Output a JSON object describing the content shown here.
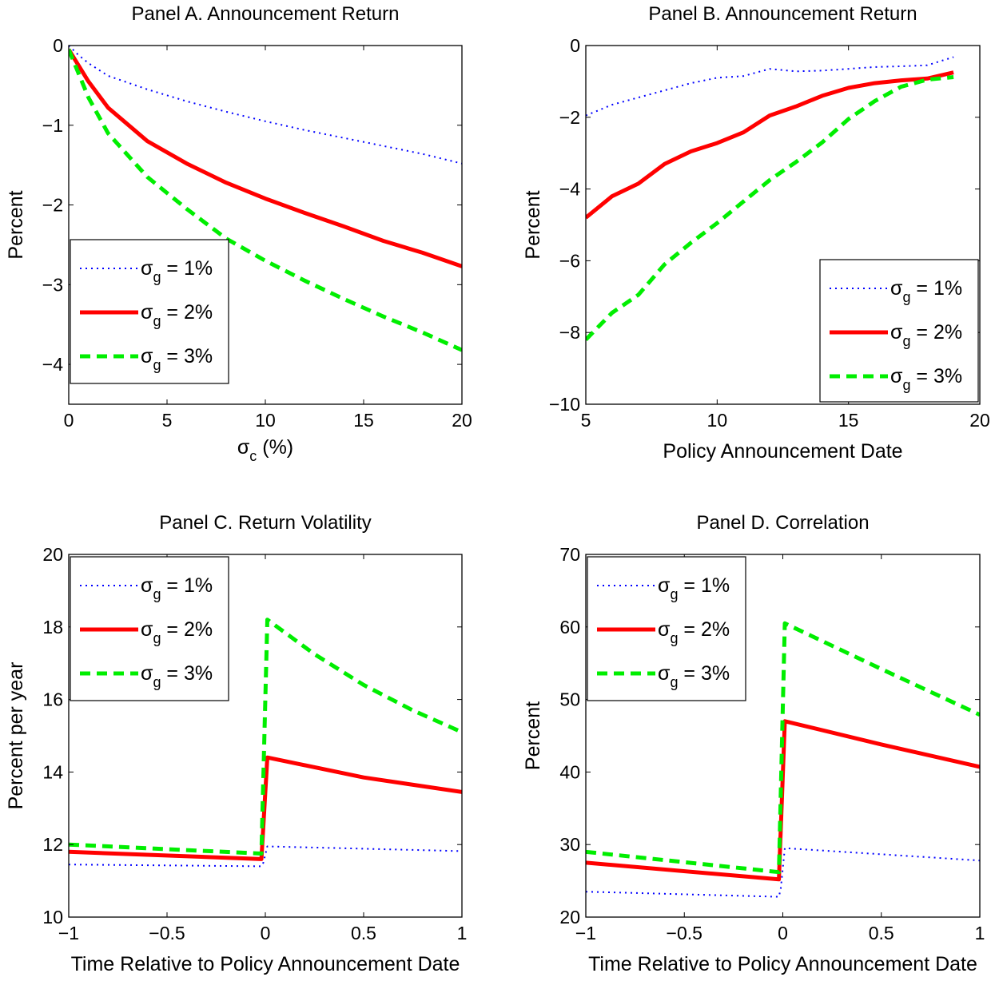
{
  "chart_data": [
    {
      "id": "A",
      "type": "line",
      "title": "Panel A. Announcement Return",
      "xlabel": "σ_c (%)",
      "xlabel_parts": {
        "sym": "σ",
        "sub": "c",
        "rest": " (%)"
      },
      "ylabel": "Percent",
      "xlim": [
        0,
        20
      ],
      "ylim": [
        -4.5,
        0
      ],
      "xticks": [
        0,
        5,
        10,
        15,
        20
      ],
      "xtick_labels": [
        "0",
        "5",
        "10",
        "15",
        "20"
      ],
      "yticks": [
        0,
        -1,
        -2,
        -3,
        -4
      ],
      "ytick_labels": [
        "0",
        "−1",
        "−2",
        "−3",
        "−4"
      ],
      "grid": false,
      "legend_position": "bottom-left",
      "series": [
        {
          "name": "σg = 1%",
          "label_parts": {
            "sym": "σ",
            "sub": "g",
            "rest": " = 1%"
          },
          "style": "dotted",
          "color": "#0000ff",
          "x": [
            0,
            0.5,
            1,
            2,
            4,
            6,
            8,
            10,
            12,
            14,
            16,
            18,
            20
          ],
          "y": [
            0,
            -0.12,
            -0.22,
            -0.38,
            -0.55,
            -0.7,
            -0.83,
            -0.95,
            -1.06,
            -1.16,
            -1.26,
            -1.36,
            -1.48
          ]
        },
        {
          "name": "σg = 2%",
          "label_parts": {
            "sym": "σ",
            "sub": "g",
            "rest": " = 2%"
          },
          "style": "solid",
          "color": "#ff0000",
          "x": [
            0,
            0.5,
            1,
            2,
            4,
            6,
            8,
            10,
            12,
            14,
            16,
            18,
            20
          ],
          "y": [
            -0.05,
            -0.25,
            -0.45,
            -0.78,
            -1.2,
            -1.48,
            -1.72,
            -1.92,
            -2.1,
            -2.27,
            -2.45,
            -2.6,
            -2.77
          ]
        },
        {
          "name": "σg = 3%",
          "label_parts": {
            "sym": "σ",
            "sub": "g",
            "rest": " = 3%"
          },
          "style": "dashed",
          "color": "#00ee00",
          "x": [
            0,
            0.5,
            1,
            2,
            4,
            6,
            8,
            10,
            12,
            14,
            16,
            18,
            20
          ],
          "y": [
            -0.05,
            -0.35,
            -0.65,
            -1.1,
            -1.65,
            -2.05,
            -2.42,
            -2.7,
            -2.95,
            -3.18,
            -3.4,
            -3.6,
            -3.82
          ]
        }
      ]
    },
    {
      "id": "B",
      "type": "line",
      "title": "Panel B. Announcement Return",
      "xlabel": "Policy Announcement Date",
      "ylabel": "Percent",
      "xlim": [
        5,
        20
      ],
      "ylim": [
        -10,
        0
      ],
      "xticks": [
        5,
        10,
        15,
        20
      ],
      "xtick_labels": [
        "5",
        "10",
        "15",
        "20"
      ],
      "yticks": [
        0,
        -2,
        -4,
        -6,
        -8,
        -10
      ],
      "ytick_labels": [
        "0",
        "−2",
        "−4",
        "−6",
        "−8",
        "−10"
      ],
      "grid": false,
      "legend_position": "bottom-right",
      "series": [
        {
          "name": "σg = 1%",
          "label_parts": {
            "sym": "σ",
            "sub": "g",
            "rest": " = 1%"
          },
          "style": "dotted",
          "color": "#0000ff",
          "x": [
            5,
            6,
            7,
            8,
            9,
            10,
            11,
            12,
            13,
            14,
            15,
            16,
            17,
            18,
            19
          ],
          "y": [
            -1.95,
            -1.65,
            -1.45,
            -1.25,
            -1.05,
            -0.9,
            -0.85,
            -0.65,
            -0.72,
            -0.7,
            -0.65,
            -0.6,
            -0.58,
            -0.55,
            -0.32
          ]
        },
        {
          "name": "σg = 2%",
          "label_parts": {
            "sym": "σ",
            "sub": "g",
            "rest": " = 2%"
          },
          "style": "solid",
          "color": "#ff0000",
          "x": [
            5,
            6,
            7,
            8,
            9,
            10,
            11,
            12,
            13,
            14,
            15,
            16,
            17,
            18,
            19
          ],
          "y": [
            -4.8,
            -4.2,
            -3.85,
            -3.3,
            -2.95,
            -2.72,
            -2.42,
            -1.95,
            -1.7,
            -1.4,
            -1.18,
            -1.05,
            -0.97,
            -0.92,
            -0.75
          ]
        },
        {
          "name": "σg = 3%",
          "label_parts": {
            "sym": "σ",
            "sub": "g",
            "rest": " = 3%"
          },
          "style": "dashed",
          "color": "#00ee00",
          "x": [
            5,
            6,
            7,
            8,
            9,
            10,
            11,
            12,
            13,
            14,
            15,
            16,
            17,
            18,
            19
          ],
          "y": [
            -8.2,
            -7.45,
            -6.95,
            -6.1,
            -5.5,
            -4.95,
            -4.35,
            -3.75,
            -3.25,
            -2.7,
            -2.05,
            -1.55,
            -1.15,
            -0.95,
            -0.88
          ]
        }
      ]
    },
    {
      "id": "C",
      "type": "line",
      "title": "Panel C. Return Volatility",
      "xlabel": "Time Relative to Policy Announcement Date",
      "ylabel": "Percent per year",
      "xlim": [
        -1,
        1
      ],
      "ylim": [
        10,
        20
      ],
      "xticks": [
        -1,
        -0.5,
        0,
        0.5,
        1
      ],
      "xtick_labels": [
        "−1",
        "−0.5",
        "0",
        "0.5",
        "1"
      ],
      "yticks": [
        10,
        12,
        14,
        16,
        18,
        20
      ],
      "ytick_labels": [
        "10",
        "12",
        "14",
        "16",
        "18",
        "20"
      ],
      "grid": false,
      "legend_position": "top-left",
      "series": [
        {
          "name": "σg = 1%",
          "label_parts": {
            "sym": "σ",
            "sub": "g",
            "rest": " = 1%"
          },
          "style": "dotted",
          "color": "#0000ff",
          "x": [
            -1,
            -0.02,
            -0.01,
            0.01,
            1
          ],
          "y": [
            11.45,
            11.4,
            11.5,
            11.95,
            11.82
          ]
        },
        {
          "name": "σg = 2%",
          "label_parts": {
            "sym": "σ",
            "sub": "g",
            "rest": " = 2%"
          },
          "style": "solid",
          "color": "#ff0000",
          "x": [
            -1,
            -0.02,
            0.01,
            0.5,
            1
          ],
          "y": [
            11.8,
            11.6,
            14.4,
            13.85,
            13.45
          ]
        },
        {
          "name": "σg = 3%",
          "label_parts": {
            "sym": "σ",
            "sub": "g",
            "rest": " = 3%"
          },
          "style": "dashed",
          "color": "#00ee00",
          "x": [
            -1,
            -0.02,
            0.01,
            0.25,
            0.5,
            0.75,
            1
          ],
          "y": [
            12.0,
            11.75,
            18.2,
            17.25,
            16.4,
            15.7,
            15.1
          ]
        }
      ]
    },
    {
      "id": "D",
      "type": "line",
      "title": "Panel D. Correlation",
      "xlabel": "Time Relative to Policy Announcement Date",
      "ylabel": "Percent",
      "xlim": [
        -1,
        1
      ],
      "ylim": [
        20,
        70
      ],
      "xticks": [
        -1,
        -0.5,
        0,
        0.5,
        1
      ],
      "xtick_labels": [
        "−1",
        "−0.5",
        "0",
        "0.5",
        "1"
      ],
      "yticks": [
        20,
        30,
        40,
        50,
        60,
        70
      ],
      "ytick_labels": [
        "20",
        "30",
        "40",
        "50",
        "60",
        "70"
      ],
      "grid": false,
      "legend_position": "top-left",
      "series": [
        {
          "name": "σg = 1%",
          "label_parts": {
            "sym": "σ",
            "sub": "g",
            "rest": " = 1%"
          },
          "style": "dotted",
          "color": "#0000ff",
          "x": [
            -1,
            -0.02,
            -0.01,
            0.01,
            1
          ],
          "y": [
            23.5,
            22.8,
            24.0,
            29.5,
            27.8
          ]
        },
        {
          "name": "σg = 2%",
          "label_parts": {
            "sym": "σ",
            "sub": "g",
            "rest": " = 2%"
          },
          "style": "solid",
          "color": "#ff0000",
          "x": [
            -1,
            -0.02,
            0.01,
            0.5,
            1
          ],
          "y": [
            27.5,
            25.2,
            47.0,
            43.8,
            40.7
          ]
        },
        {
          "name": "σg = 3%",
          "label_parts": {
            "sym": "σ",
            "sub": "g",
            "rest": " = 3%"
          },
          "style": "dashed",
          "color": "#00ee00",
          "x": [
            -1,
            -0.02,
            0.01,
            0.5,
            1
          ],
          "y": [
            29.0,
            26.2,
            60.5,
            54.2,
            47.9
          ]
        }
      ]
    }
  ]
}
